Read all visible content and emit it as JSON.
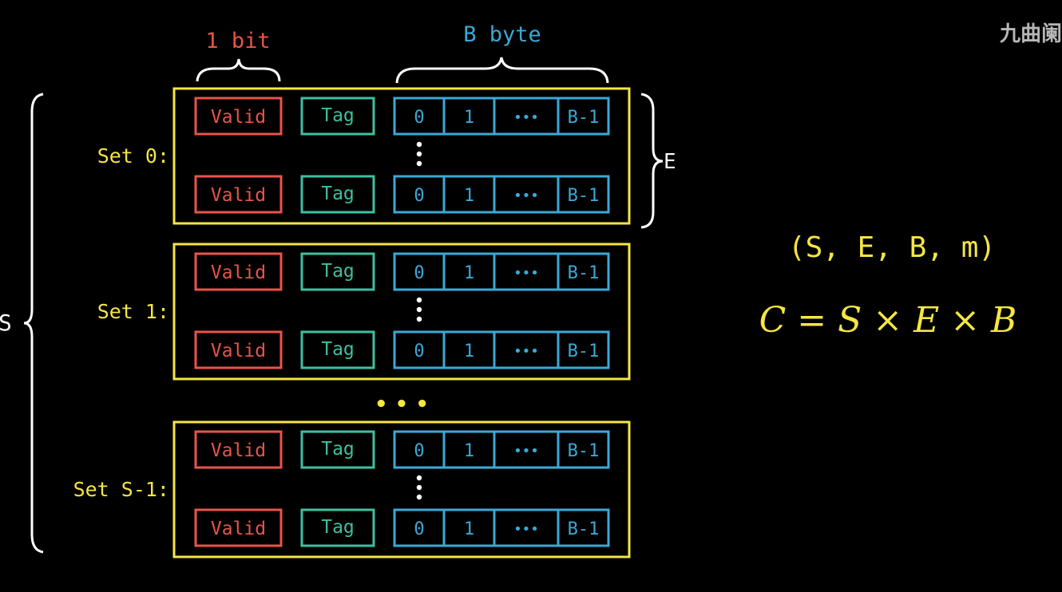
{
  "labels": {
    "bit_label": "1 bit",
    "byte_label": "B byte",
    "e_label": "E",
    "s_label": "S",
    "ellipsis_sets": "• • •"
  },
  "sets": [
    {
      "label": "Set 0:",
      "lines": [
        {
          "valid": "Valid",
          "tag": "Tag",
          "blocks": [
            "0",
            "1",
            "•••",
            "B-1"
          ]
        },
        {
          "valid": "Valid",
          "tag": "Tag",
          "blocks": [
            "0",
            "1",
            "•••",
            "B-1"
          ]
        }
      ]
    },
    {
      "label": "Set 1:",
      "lines": [
        {
          "valid": "Valid",
          "tag": "Tag",
          "blocks": [
            "0",
            "1",
            "•••",
            "B-1"
          ]
        },
        {
          "valid": "Valid",
          "tag": "Tag",
          "blocks": [
            "0",
            "1",
            "•••",
            "B-1"
          ]
        }
      ]
    },
    {
      "label": "Set S-1:",
      "lines": [
        {
          "valid": "Valid",
          "tag": "Tag",
          "blocks": [
            "0",
            "1",
            "•••",
            "B-1"
          ]
        },
        {
          "valid": "Valid",
          "tag": "Tag",
          "blocks": [
            "0",
            "1",
            "•••",
            "B-1"
          ]
        }
      ]
    }
  ],
  "formula": {
    "params": "(S, E, B, m)",
    "capacity": "C = S × E × B"
  },
  "watermark": "九曲阑",
  "colors": {
    "background": "#000000",
    "set_frame": "#f5e642",
    "valid": "#e8544a",
    "tag": "#3fbfa0",
    "block": "#3aa9d8",
    "label": "#f5e642",
    "brace": "#ffffff"
  }
}
